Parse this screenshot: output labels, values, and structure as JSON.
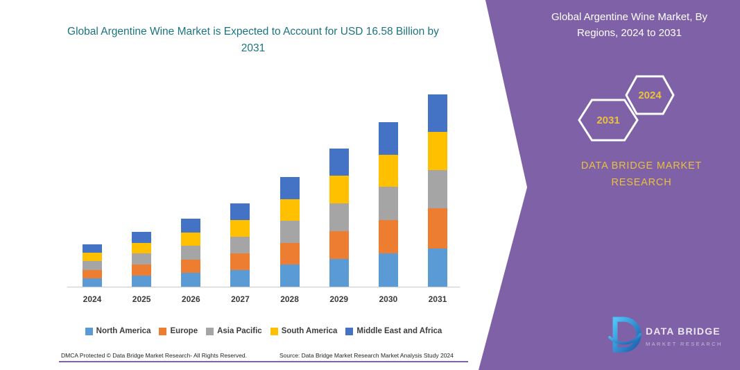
{
  "panel": {
    "title": "Global Argentine Wine Market, By Regions, 2024 to 2031",
    "hexagons": [
      {
        "label": "2031"
      },
      {
        "label": "2024"
      }
    ],
    "brand_line": "DATA BRIDGE MARKET RESEARCH",
    "logo": {
      "primary": "DATA BRIDGE",
      "secondary": "MARKET RESEARCH"
    }
  },
  "footer": {
    "dmca": "DMCA Protected © Data Bridge Market Research-  All Rights Reserved.",
    "source": "Source: Data Bridge Market Research  Market Analysis Study 2024"
  },
  "colors": {
    "purple": "#7e61a6",
    "teal_title": "#1c7380",
    "gold": "#e8c13e"
  },
  "chart_data": {
    "type": "bar",
    "stacked": true,
    "title": "Global Argentine Wine Market is Expected to Account for USD 16.58 Billion by 2031",
    "unit": "USD Billion",
    "categories": [
      "2024",
      "2025",
      "2026",
      "2027",
      "2028",
      "2029",
      "2030",
      "2031"
    ],
    "series": [
      {
        "name": "North America",
        "color": "#5B9BD5",
        "values": [
          0.73,
          0.95,
          1.18,
          1.45,
          1.9,
          2.4,
          2.9,
          3.3
        ]
      },
      {
        "name": "Europe",
        "color": "#ED7D31",
        "values": [
          0.73,
          0.95,
          1.18,
          1.44,
          1.9,
          2.4,
          2.85,
          3.45
        ]
      },
      {
        "name": "Asia Pacific",
        "color": "#A5A5A5",
        "values": [
          0.73,
          0.95,
          1.17,
          1.43,
          1.9,
          2.38,
          2.85,
          3.3
        ]
      },
      {
        "name": "South America",
        "color": "#FFC000",
        "values": [
          0.73,
          0.94,
          1.17,
          1.43,
          1.88,
          2.38,
          2.8,
          3.3
        ]
      },
      {
        "name": "Middle East and Africa",
        "color": "#4472C4",
        "values": [
          0.73,
          0.94,
          1.17,
          1.43,
          1.88,
          2.35,
          2.79,
          3.23
        ]
      }
    ],
    "totals": [
      3.65,
      4.73,
      5.87,
      7.18,
      9.46,
      11.91,
      14.19,
      16.58
    ],
    "ylim": [
      0,
      18
    ],
    "grid": false,
    "legend_position": "bottom",
    "y_axis_shown": false
  }
}
